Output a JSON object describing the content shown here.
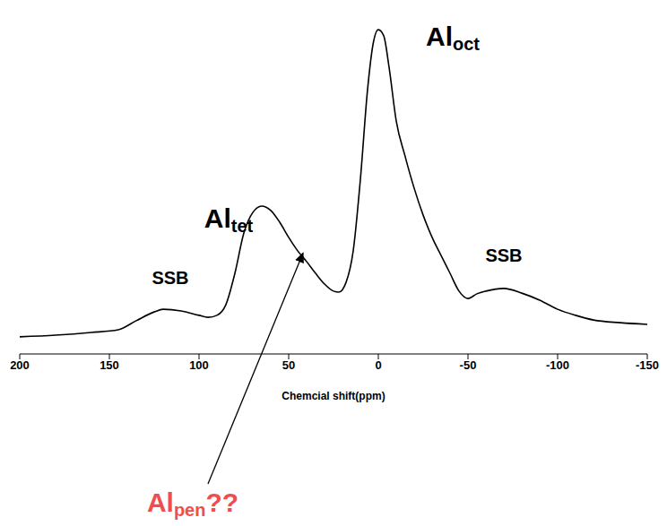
{
  "chart_data": {
    "type": "line",
    "x_label": "Chemcial shift(ppm)",
    "xlim": [
      -150,
      200
    ],
    "xticks": [
      200,
      150,
      100,
      50,
      0,
      -50,
      -100,
      -150
    ],
    "ylim": [
      0,
      100
    ],
    "tick_labels": "x",
    "grid": false,
    "color": "#000000",
    "x": [
      200,
      180,
      160,
      145,
      135,
      125,
      120,
      110,
      100,
      95,
      90,
      85,
      80,
      75,
      70,
      65,
      60,
      55,
      50,
      45,
      40,
      35,
      30,
      25,
      22,
      18,
      14,
      10,
      6,
      3,
      0,
      -3,
      -6,
      -10,
      -15,
      -20,
      -25,
      -30,
      -35,
      -40,
      -45,
      -50,
      -55,
      -60,
      -70,
      -80,
      -90,
      -100,
      -110,
      -120,
      -135,
      -150
    ],
    "values": [
      5.1,
      5.6,
      6.4,
      7.2,
      9.9,
      12.5,
      13.3,
      12.8,
      11.5,
      10.9,
      11.5,
      14.7,
      24.0,
      36.0,
      42.1,
      44.0,
      42.7,
      39.2,
      34.7,
      30.7,
      27.5,
      24.0,
      20.8,
      18.7,
      18.4,
      21.3,
      30.7,
      52.0,
      78.7,
      92.0,
      96.5,
      94.7,
      85.3,
      69.3,
      58.7,
      49.3,
      41.3,
      34.7,
      29.3,
      24.0,
      18.7,
      16.5,
      17.9,
      18.7,
      19.5,
      18.1,
      16.0,
      13.3,
      11.5,
      10.1,
      9.3,
      8.8
    ],
    "annotations": [
      {
        "text": "Al",
        "subscript": "oct",
        "x": -41.5,
        "y": 94.7
      },
      {
        "text": "Al",
        "subscript": "tet",
        "x": 83.5,
        "y": 40.5
      },
      {
        "text": "SSB",
        "x": 116,
        "y": 22.7
      },
      {
        "text": "SSB",
        "x": -70,
        "y": 29.3
      },
      {
        "text": "Al",
        "subscript": "pen",
        "suffix": "??",
        "color": "#f04e4e",
        "arrow_to": [
          42,
          30
        ]
      }
    ]
  }
}
